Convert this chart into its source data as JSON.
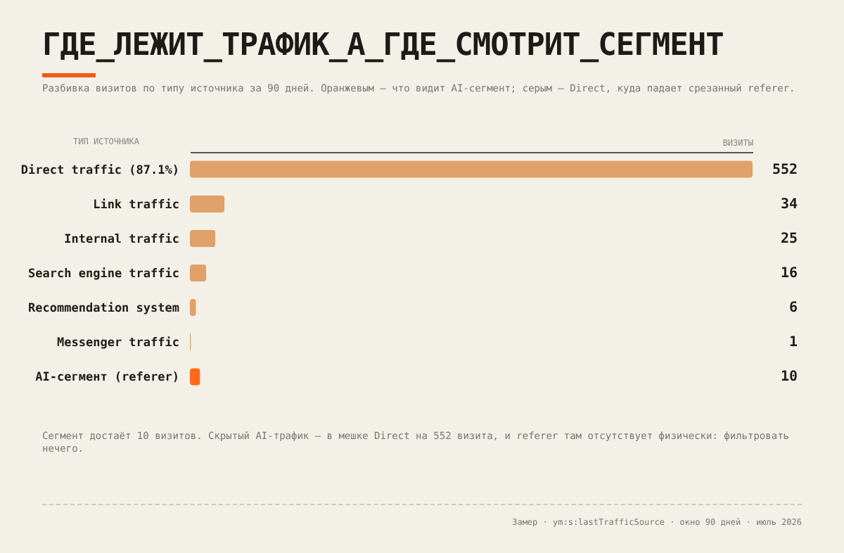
{
  "chart_data": {
    "type": "bar",
    "orientation": "horizontal",
    "relative": false,
    "title": "ГДЕ_ЛЕЖИТ_ТРАФИК_А_ГДЕ_СМОТРИТ_СЕГМЕНТ",
    "subtitle": "Разбивка визитов по типу источника за 90 дней. Оранжевым — что видит AI-сегмент; серым — Direct, куда падает срезанный referer.",
    "ylabel": "ТИП ИСТОЧНИКА",
    "xlabel": "ВИЗИТЫ",
    "categories": [
      "Direct traffic (87.1%)",
      "Link traffic",
      "Internal traffic",
      "Search engine traffic",
      "Recommendation system",
      "Messenger traffic",
      "AI-сегмент (referer)"
    ],
    "values": [
      552,
      34,
      25,
      16,
      6,
      1,
      10
    ],
    "colors": [
      "#e0a06a",
      "#e0a06a",
      "#e0a06a",
      "#e0a06a",
      "#e0a06a",
      "#e0a06a",
      "#ff6a1a"
    ],
    "data_labels": true,
    "annotations": [
      "Сегмент достаёт 10 визитов. Скрытый AI-трафик — в мешке Direct на 552 визита, и referer там отсутствует физически: фильтровать нечего.",
      "Замер · ym:s:lastTrafficSource · окно 90 дней · июль 2026"
    ]
  }
}
